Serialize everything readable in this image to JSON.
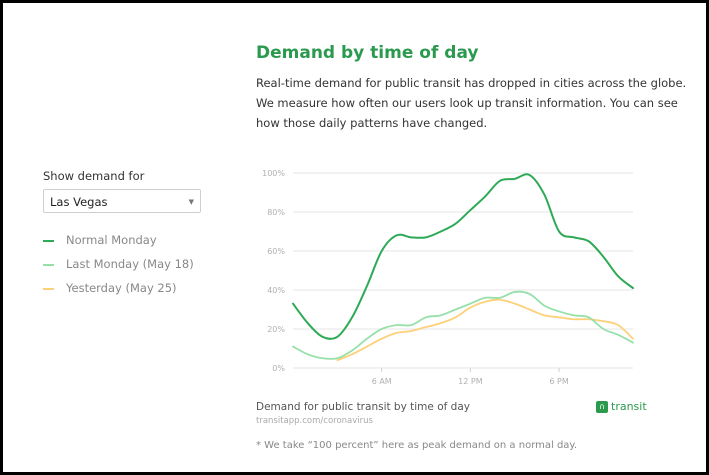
{
  "header": {
    "title": "Demand by time of day",
    "intro_lines": [
      "Real-time demand for public transit has dropped in cities across the globe.",
      "We measure how often our users look up transit information. You can see",
      "how those daily patterns have changed."
    ]
  },
  "controls": {
    "show_label": "Show demand for",
    "selected_city": "Las Vegas"
  },
  "legend": [
    {
      "label": "Normal Monday",
      "color": "#2eaa57"
    },
    {
      "label": "Last Monday (May 18)",
      "color": "#96e0aa"
    },
    {
      "label": "Yesterday (May 25)",
      "color": "#fdd07a"
    }
  ],
  "chart_data": {
    "type": "line",
    "x_ticks": [
      "6 AM",
      "12 PM",
      "6 PM"
    ],
    "y_ticks": [
      "0%",
      "20%",
      "40%",
      "60%",
      "80%",
      "100%"
    ],
    "xlim": [
      0,
      23
    ],
    "ylim": [
      0,
      100
    ],
    "grid": true,
    "series": [
      {
        "name": "Normal Monday",
        "color": "#2eaa57",
        "x": [
          0,
          1,
          2,
          3,
          4,
          5,
          6,
          7,
          8,
          9,
          10,
          11,
          12,
          13,
          14,
          15,
          16,
          17,
          18,
          19,
          20,
          21,
          22,
          23
        ],
        "values": [
          33,
          23,
          16,
          16,
          26,
          42,
          60,
          68,
          67,
          67,
          70,
          74,
          81,
          88,
          96,
          97,
          99,
          89,
          70,
          67,
          65,
          57,
          47,
          41
        ]
      },
      {
        "name": "Last Monday (May 18)",
        "color": "#96e0aa",
        "x": [
          0,
          1,
          2,
          3,
          4,
          5,
          6,
          7,
          8,
          9,
          10,
          11,
          12,
          13,
          14,
          15,
          16,
          17,
          18,
          19,
          20,
          21,
          22,
          23
        ],
        "values": [
          11,
          7,
          5,
          5,
          9,
          15,
          20,
          22,
          22,
          26,
          27,
          30,
          33,
          36,
          36,
          39,
          38,
          32,
          29,
          27,
          26,
          20,
          17,
          13
        ]
      },
      {
        "name": "Yesterday (May 25)",
        "color": "#fdd07a",
        "x": [
          0,
          1,
          2,
          3,
          4,
          5,
          6,
          7,
          8,
          9,
          10,
          11,
          12,
          13,
          14,
          15,
          16,
          17,
          18,
          19,
          20,
          21,
          22,
          23
        ],
        "values": [
          null,
          null,
          null,
          4,
          7,
          11,
          15,
          18,
          19,
          21,
          23,
          26,
          31,
          34,
          35,
          33,
          30,
          27,
          26,
          25,
          25,
          24,
          22,
          15
        ]
      }
    ]
  },
  "footer": {
    "caption": "Demand for public transit by time of day",
    "source": "transitapp.com/coronavirus",
    "brand": "transit",
    "footnote": "* We take “100 percent” here as peak demand on a normal day."
  }
}
